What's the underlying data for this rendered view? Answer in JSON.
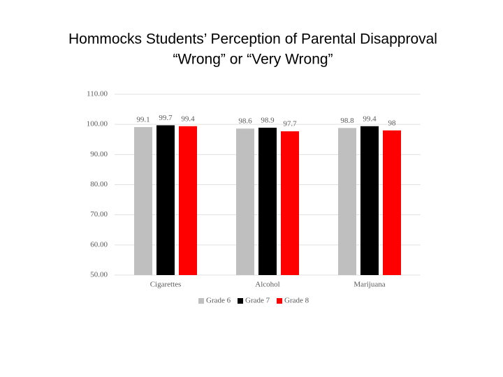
{
  "chart_data": {
    "type": "bar",
    "title": [
      "Hommocks Students’ Perception of Parental Disapproval",
      "“Wrong” or “Very Wrong”"
    ],
    "categories": [
      "Cigarettes",
      "Alcohol",
      "Marijuana"
    ],
    "series": [
      {
        "name": "Grade 6",
        "color": "#bfbfbf",
        "values": [
          99.1,
          98.6,
          98.8
        ]
      },
      {
        "name": "Grade 7",
        "color": "#000000",
        "values": [
          99.7,
          98.9,
          99.4
        ]
      },
      {
        "name": "Grade 8",
        "color": "#ff0000",
        "values": [
          99.4,
          97.7,
          98
        ]
      }
    ],
    "ylim": [
      50,
      110
    ],
    "yticks": [
      {
        "value": 50,
        "label": "50.00"
      },
      {
        "value": 60,
        "label": "60.00"
      },
      {
        "value": 70,
        "label": "70.00"
      },
      {
        "value": 80,
        "label": "80.00"
      },
      {
        "value": 90,
        "label": "90.00"
      },
      {
        "value": 100,
        "label": "100.00"
      },
      {
        "value": 110,
        "label": "110.00"
      }
    ],
    "grid": true,
    "legend": "bottom"
  }
}
